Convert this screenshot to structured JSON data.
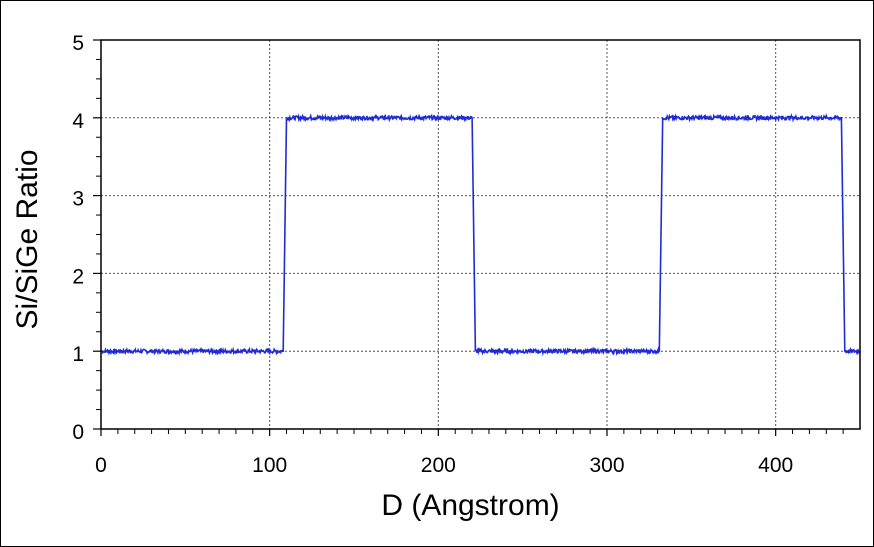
{
  "chart_data": {
    "type": "line",
    "title": "",
    "xlabel": "D (Angstrom)",
    "ylabel": "Si/SiGe Ratio",
    "xlim": [
      0,
      450
    ],
    "ylim": [
      0,
      5
    ],
    "x_ticks": [
      0,
      100,
      200,
      300,
      400
    ],
    "x_tick_labels": [
      "0",
      "100",
      "200",
      "300",
      "400"
    ],
    "y_ticks": [
      0,
      1,
      2,
      3,
      4,
      5
    ],
    "y_tick_labels": [
      "0",
      "1",
      "2",
      "3",
      "4",
      "5"
    ],
    "grid": true,
    "legend": "none",
    "series": [
      {
        "color": "#1f2bd6",
        "x": [
          0,
          108,
          110,
          220,
          222,
          331,
          333,
          439,
          441,
          450
        ],
        "y": [
          1,
          1,
          4,
          4,
          1,
          1,
          4,
          4,
          1,
          1
        ]
      }
    ]
  }
}
